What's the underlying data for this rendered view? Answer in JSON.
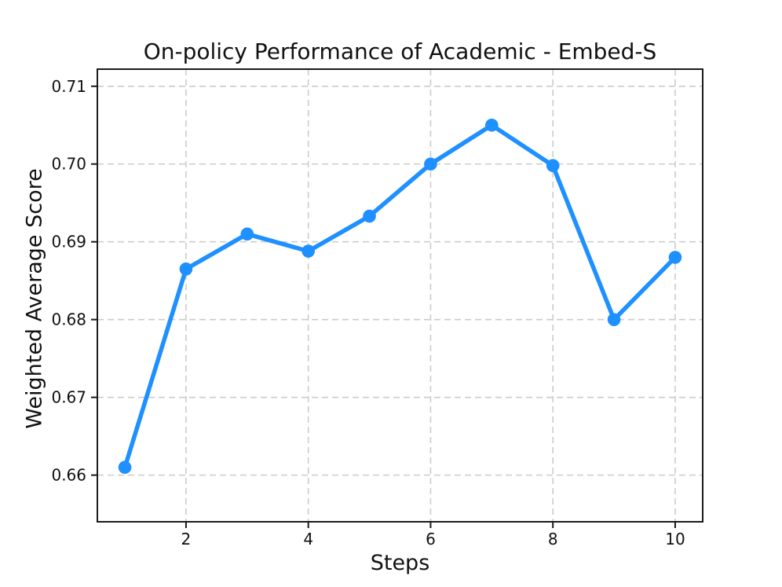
{
  "chart_data": {
    "type": "line",
    "title": "On-policy Performance of Academic - Embed-S",
    "xlabel": "Steps",
    "ylabel": "Weighted Average Score",
    "x": [
      1,
      2,
      3,
      4,
      5,
      6,
      7,
      8,
      9,
      10
    ],
    "y": [
      0.661,
      0.6865,
      0.691,
      0.6888,
      0.6933,
      0.7,
      0.705,
      0.6998,
      0.68,
      0.688
    ],
    "x_ticks": [
      2,
      4,
      6,
      8,
      10
    ],
    "x_tick_labels": [
      "2",
      "4",
      "6",
      "8",
      "10"
    ],
    "y_ticks": [
      0.66,
      0.67,
      0.68,
      0.69,
      0.7,
      0.71
    ],
    "y_tick_labels": [
      "0.66",
      "0.67",
      "0.68",
      "0.69",
      "0.70",
      "0.71"
    ],
    "xlim": [
      0.55,
      10.45
    ],
    "ylim": [
      0.654,
      0.7122
    ],
    "grid": true,
    "grid_style": "dashed",
    "grid_color": "#cccccc",
    "line_color": "#1E90FF",
    "marker": "circle",
    "spine_color": "#1a1a1a",
    "background_color": "#ffffff",
    "legend": "none"
  }
}
